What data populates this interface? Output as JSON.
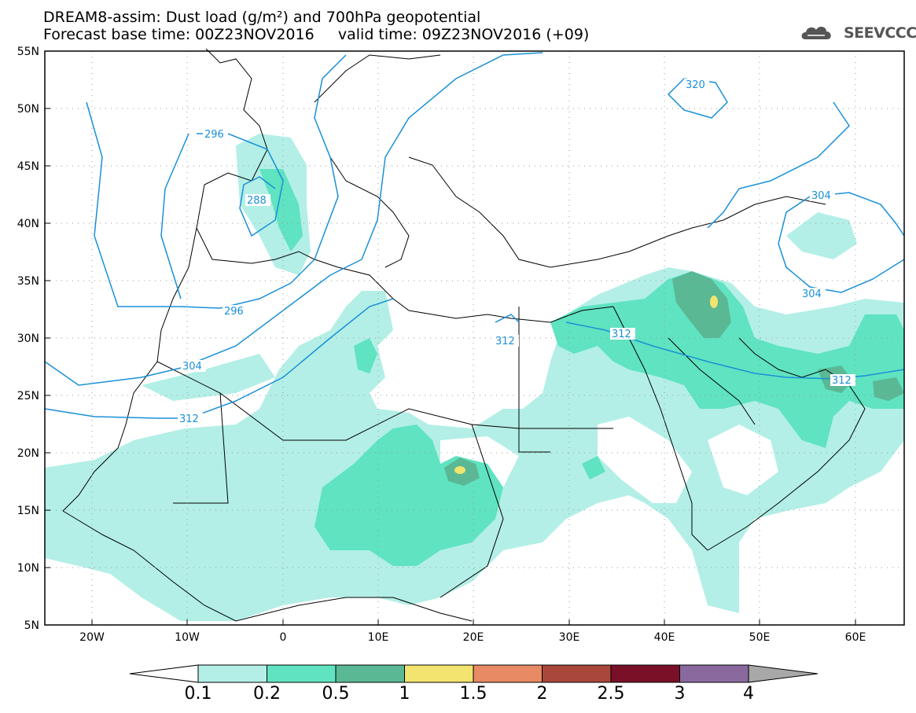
{
  "title": {
    "line1": "DREAM8-assim: Dust load (g/m²) and 700hPa geopotential",
    "line2": "Forecast base time: 00Z23NOV2016     valid time: 09Z23NOV2016 (+09)"
  },
  "logo": {
    "text": "SEEVCCC",
    "icon": "cloud-icon"
  },
  "axes": {
    "lon_ticks": [
      "20W",
      "10W",
      "0",
      "10E",
      "20E",
      "30E",
      "40E",
      "50E",
      "60E"
    ],
    "lat_ticks": [
      "55N",
      "50N",
      "45N",
      "40N",
      "35N",
      "30N",
      "25N",
      "20N",
      "15N",
      "10N",
      "5N"
    ],
    "lon_range": [
      -25,
      65
    ],
    "lat_range": [
      5,
      55
    ]
  },
  "contours": {
    "color": "#1a90d8",
    "labels": [
      "296",
      "288",
      "296",
      "304",
      "312",
      "320",
      "312",
      "312",
      "304",
      "304",
      "312"
    ]
  },
  "colorbar": {
    "bounds": [
      "0.1",
      "0.2",
      "0.5",
      "1",
      "1.5",
      "2",
      "2.5",
      "3",
      "4"
    ],
    "colors": [
      "#ffffff",
      "#b3efe6",
      "#5fe3c0",
      "#5ab894",
      "#f2e46e",
      "#e88a64",
      "#a8473a",
      "#7a0f28",
      "#8a6a9e",
      "#a8a8a8"
    ]
  },
  "dust_colors": {
    "low": "#b3efe6",
    "mid": "#5fe3c0",
    "high": "#5ab894",
    "peak": "#f2e46e"
  }
}
